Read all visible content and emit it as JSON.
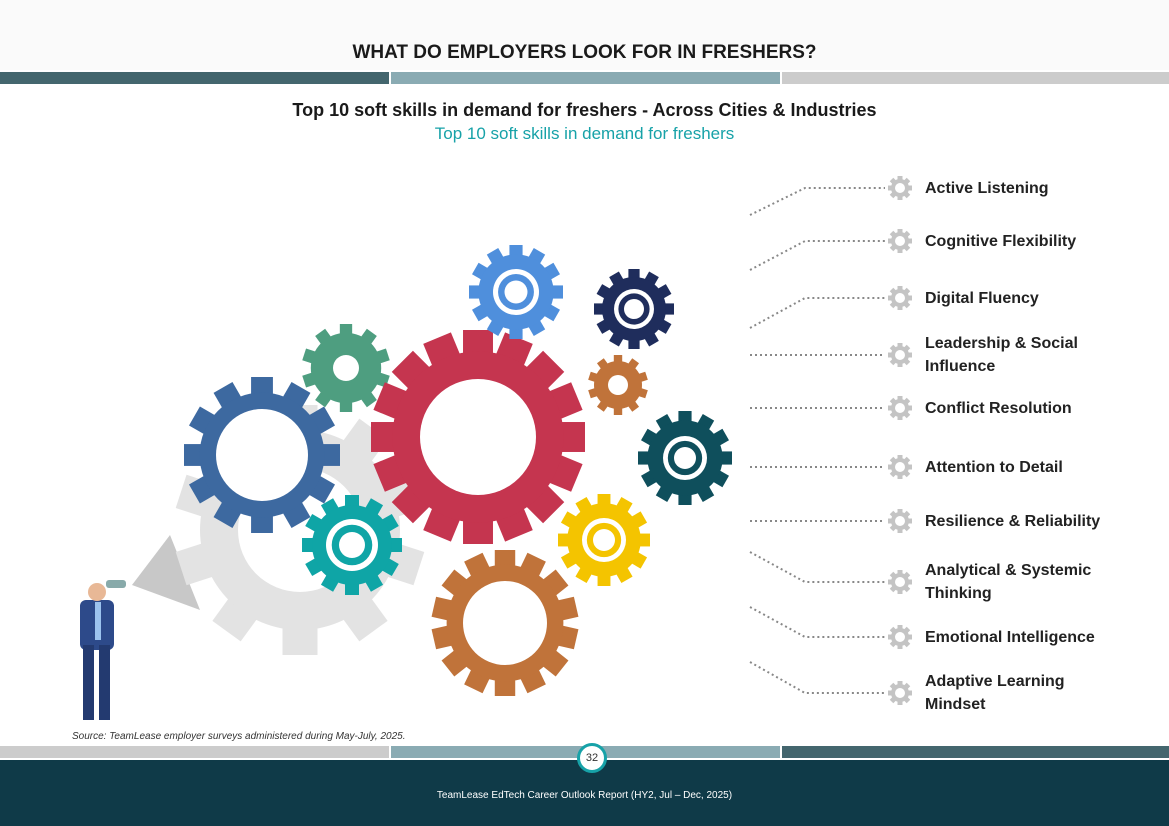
{
  "header": {
    "title": "WHAT DO EMPLOYERS LOOK FOR IN FRESHERS?"
  },
  "section": {
    "title": "Top 10 soft skills in demand for freshers - Across Cities & Industries",
    "subtitle": "Top 10 soft skills in demand for freshers"
  },
  "skills": [
    "Active Listening",
    "Cognitive Flexibility",
    "Digital Fluency",
    "Leadership & Social Influence",
    "Conflict Resolution",
    "Attention to Detail",
    "Resilience & Reliability",
    "Analytical & Systemic Thinking",
    "Emotional Intelligence",
    "Adaptive Learning Mindset"
  ],
  "source": "Source: TeamLease employer surveys administered during May-July, 2025.",
  "footer": {
    "page_number": "32",
    "report": "TeamLease EdTech Career Outlook Report (HY2, Jul – Dec, 2025)"
  },
  "colors": {
    "dark_teal": "#44666e",
    "mid_teal": "#8aabb3",
    "light_gray": "#cccccc",
    "accent": "#17a2a8",
    "footer_bg": "#0f3a48"
  }
}
